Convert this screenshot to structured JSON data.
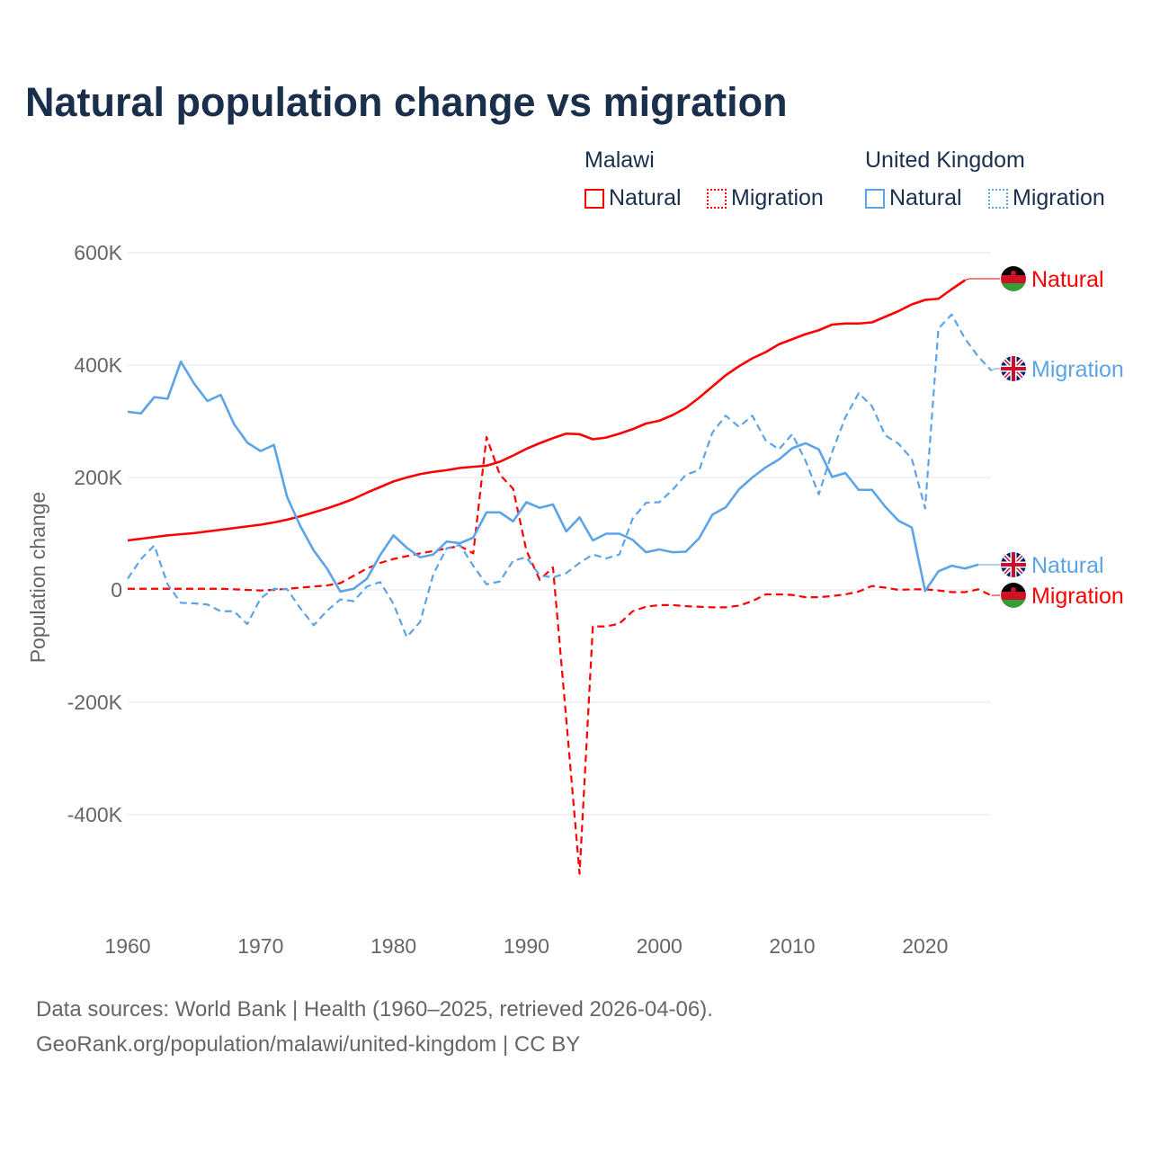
{
  "title": "Natural population change vs migration",
  "legend": {
    "groups": [
      {
        "name": "Malawi",
        "items": [
          "Natural",
          "Migration"
        ],
        "color": "#ff0000"
      },
      {
        "name": "United Kingdom",
        "items": [
          "Natural",
          "Migration"
        ],
        "color": "#5ba4e8"
      }
    ]
  },
  "footer": {
    "line1": "Data sources: World Bank | Health (1960–2025, retrieved 2026-04-06).",
    "line2": "GeoRank.org/population/malawi/united-kingdom | CC BY"
  },
  "chart_data": {
    "type": "line",
    "title": "Natural population change vs migration",
    "xlabel": "",
    "ylabel": "Population change",
    "xlim": [
      1960,
      2025
    ],
    "ylim": [
      -500000,
      600000
    ],
    "x_ticks": [
      "1960",
      "1970",
      "1980",
      "1990",
      "2000",
      "2010",
      "2020"
    ],
    "y_ticks": [
      {
        "value": 600000,
        "label": "600K"
      },
      {
        "value": 400000,
        "label": "400K"
      },
      {
        "value": 200000,
        "label": "200K"
      },
      {
        "value": 0,
        "label": "0"
      },
      {
        "value": -200000,
        "label": "-200K"
      },
      {
        "value": -400000,
        "label": "-400K"
      }
    ],
    "grid": true,
    "legend_position": "top-right",
    "start_year": 1960,
    "series": [
      {
        "name": "Malawi Natural",
        "label": "Natural",
        "country": "Malawi",
        "color": "#ff0000",
        "dash": false,
        "values_k": [
          88,
          91,
          94,
          97,
          99,
          101,
          104,
          107,
          110,
          113,
          116,
          120,
          125,
          131,
          138,
          145,
          153,
          162,
          173,
          183,
          193,
          200,
          206,
          210,
          213,
          217,
          219,
          221,
          228,
          239,
          251,
          261,
          270,
          278,
          277,
          268,
          271,
          278,
          286,
          296,
          301,
          311,
          324,
          342,
          362,
          382,
          398,
          412,
          423,
          437,
          446,
          455,
          462,
          472,
          474,
          474,
          476,
          486,
          496,
          508,
          516,
          518,
          535,
          551
        ]
      },
      {
        "name": "Malawi Migration",
        "label": "Migration",
        "country": "Malawi",
        "color": "#ff0000",
        "dash": true,
        "values_k": [
          2,
          2,
          2,
          2,
          2,
          2,
          2,
          2,
          1,
          0,
          -1,
          0,
          2,
          4,
          6,
          8,
          12,
          25,
          38,
          48,
          55,
          60,
          65,
          69,
          74,
          78,
          65,
          272,
          205,
          180,
          70,
          18,
          40,
          -230,
          -505,
          -65,
          -65,
          -60,
          -38,
          -30,
          -27,
          -27,
          -29,
          -30,
          -31,
          -31,
          -28,
          -20,
          -8,
          -8,
          -9,
          -13,
          -13,
          -11,
          -8,
          -3,
          7,
          4,
          0,
          1,
          1,
          -1,
          -4,
          -4,
          1,
          -10
        ]
      },
      {
        "name": "United Kingdom Natural",
        "label": "Natural",
        "country": "United Kingdom",
        "color": "#5ba4e8",
        "dash": false,
        "values_k": [
          317,
          314,
          343,
          340,
          406,
          367,
          336,
          347,
          295,
          262,
          247,
          258,
          165,
          113,
          70,
          38,
          -3,
          2,
          20,
          62,
          97,
          75,
          58,
          63,
          86,
          83,
          93,
          138,
          138,
          122,
          156,
          146,
          152,
          104,
          129,
          88,
          100,
          100,
          89,
          67,
          72,
          67,
          68,
          92,
          134,
          147,
          179,
          200,
          218,
          232,
          252,
          261,
          250,
          201,
          208,
          178,
          178,
          148,
          123,
          111,
          -2,
          33,
          43,
          38,
          45
        ]
      },
      {
        "name": "United Kingdom Migration",
        "label": "Migration",
        "country": "United Kingdom",
        "color": "#5ba4e8",
        "dash": true,
        "values_k": [
          20,
          55,
          79,
          10,
          -23,
          -24,
          -26,
          -38,
          -38,
          -61,
          -15,
          2,
          1,
          -33,
          -63,
          -37,
          -17,
          -20,
          6,
          14,
          -25,
          -84,
          -57,
          28,
          74,
          80,
          43,
          10,
          15,
          52,
          58,
          26,
          22,
          30,
          48,
          63,
          56,
          63,
          127,
          155,
          156,
          178,
          205,
          213,
          280,
          310,
          290,
          310,
          266,
          250,
          277,
          230,
          170,
          245,
          307,
          350,
          327,
          275,
          260,
          233,
          145,
          465,
          490,
          447,
          415,
          390
        ]
      }
    ]
  }
}
